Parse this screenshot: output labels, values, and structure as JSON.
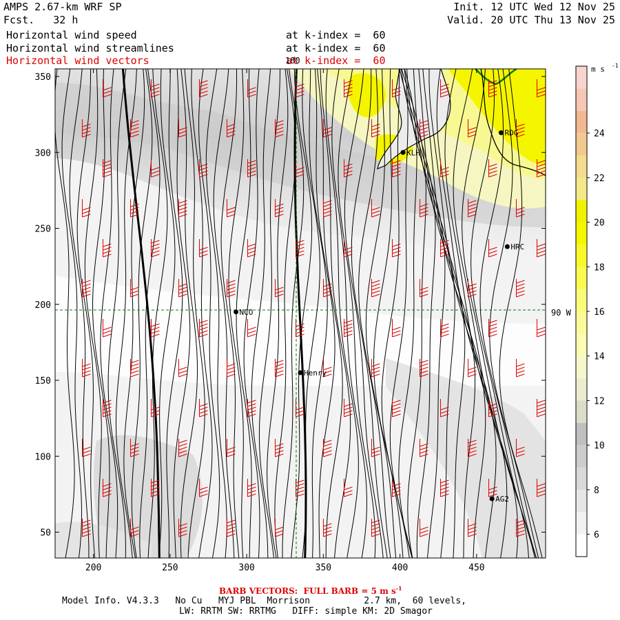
{
  "header": {
    "model": "AMPS 2.67-km WRF SP",
    "fcst_label": "Fcst.",
    "fcst_value": "32 h",
    "init": "Init. 12 UTC Wed 12 Nov 25",
    "valid": "Valid. 20 UTC Thu 13 Nov 25"
  },
  "fields": [
    {
      "name": "Horizontal wind speed",
      "level": "at k-index =  60",
      "color": "#000000"
    },
    {
      "name": "Horizontal wind streamlines",
      "level": "at k-index =  60",
      "color": "#000000"
    },
    {
      "name": "Horizontal wind vectors",
      "level": "at k-index =  60",
      "color": "#e00000"
    }
  ],
  "footer": {
    "barb_note": "BARB VECTORS:  FULL BARB = 5 m s",
    "barb_sup": "-1",
    "model_info": "Model Info. V4.3.3   No Cu   MYJ PBL  Morrison          2.7 km,  60 levels,",
    "physics": "LW: RRTM SW: RRTMG   DIFF: simple KM: 2D Smagor"
  },
  "chart_data": {
    "type": "heatmap",
    "x_ticks": [
      "200",
      "250",
      "300",
      "350",
      "400",
      "450"
    ],
    "y_ticks": [
      "50",
      "100",
      "150",
      "200",
      "250",
      "300",
      "350"
    ],
    "xlim": [
      175,
      495
    ],
    "ylim": [
      33,
      355
    ],
    "colorbar": {
      "unit": "m s",
      "unit_sup": "-1",
      "labels": [
        "6",
        "8",
        "10",
        "12",
        "14",
        "16",
        "18",
        "20",
        "22",
        "24"
      ],
      "levels": [
        5,
        6,
        7,
        8,
        9,
        10,
        11,
        12,
        13,
        14,
        15,
        16,
        17,
        18,
        19,
        20,
        21,
        22,
        23,
        24,
        25,
        26,
        27
      ],
      "colors": [
        "#ffffff",
        "#f2f2f2",
        "#e6e6e6",
        "#d9d9d9",
        "#cccccc",
        "#bfbfbf",
        "#dcdcc8",
        "#ececd0",
        "#f7f7cc",
        "#fbfbb4",
        "#fbfb99",
        "#fbfb7a",
        "#fafa4f",
        "#f8f82a",
        "#f6f600",
        "#f2f200",
        "#f3e88a",
        "#f5dc8e",
        "#f3c98f",
        "#f2b891",
        "#f5c7b5",
        "#f8d5cf"
      ]
    },
    "grid_lines": [
      {
        "orientation": "vertical",
        "x": 330,
        "label": "180"
      },
      {
        "orientation": "horizontal",
        "y": 195,
        "label": "90 W"
      }
    ],
    "stations": [
      {
        "name": "RDG",
        "x": 466,
        "y": 313
      },
      {
        "name": "KLH",
        "x": 402,
        "y": 300
      },
      {
        "name": "HRC",
        "x": 470,
        "y": 238
      },
      {
        "name": "NCO",
        "x": 293,
        "y": 195
      },
      {
        "name": "Henry",
        "x": 335,
        "y": 155
      },
      {
        "name": "AG2",
        "x": 460,
        "y": 72
      }
    ],
    "thick_streamlines_x": [
      243,
      335
    ]
  }
}
